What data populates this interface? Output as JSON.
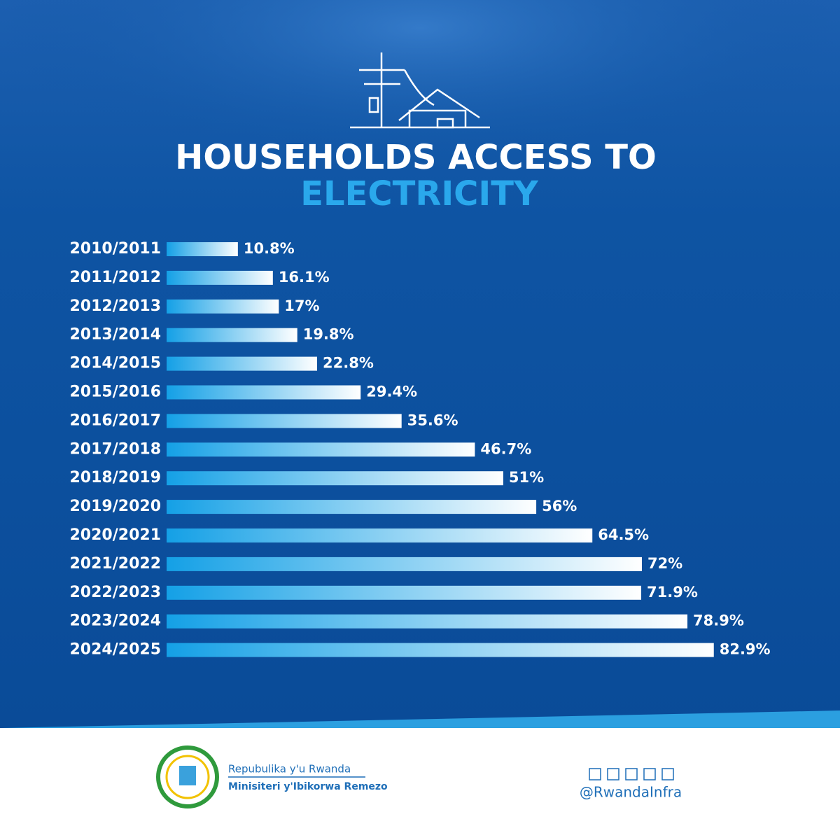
{
  "chart_data": {
    "type": "bar",
    "title": [
      "HOUSEHOLDS ACCESS TO",
      "ELECTRICITY"
    ],
    "categories": [
      "2010/2011",
      "2011/2012",
      "2012/2013",
      "2013/2014",
      "2014/2015",
      "2015/2016",
      "2016/2017",
      "2017/2018",
      "2018/2019",
      "2019/2020",
      "2020/2021",
      "2021/2022",
      "2022/2023",
      "2023/2024",
      "2024/2025"
    ],
    "values": [
      10.8,
      16.1,
      17,
      19.8,
      22.8,
      29.4,
      35.6,
      46.7,
      51,
      56,
      64.5,
      72,
      71.9,
      78.9,
      82.9
    ],
    "value_labels": [
      "10.8%",
      "16.1%",
      "17%",
      "19.8%",
      "22.8%",
      "29.4%",
      "35.6%",
      "46.7%",
      "51%",
      "56%",
      "64.5%",
      "72%",
      "71.9%",
      "78.9%",
      "82.9%"
    ],
    "color": [
      "#14a0e6",
      "#ffffff"
    ]
  },
  "footer": {
    "country": "Repubulika y'u Rwanda",
    "ministry": "Minisiteri y'Ibikorwa Remezo",
    "handle": "@RwandaInfra"
  }
}
